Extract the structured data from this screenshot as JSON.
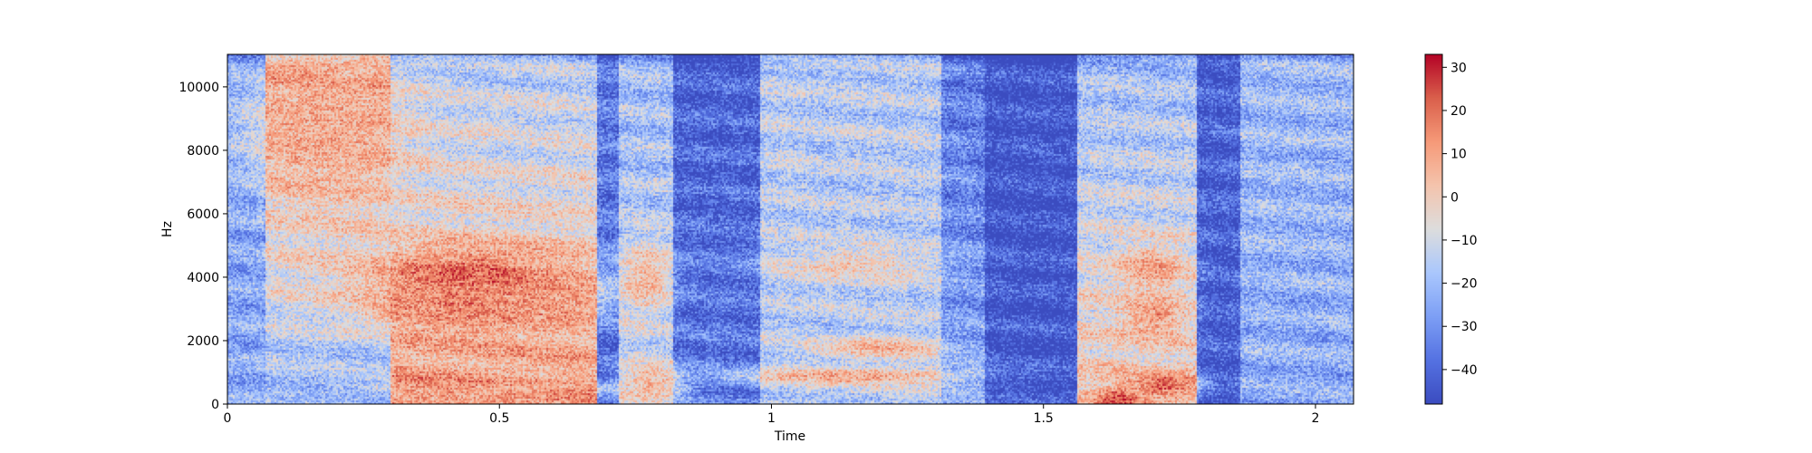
{
  "chart_data": {
    "type": "heatmap",
    "kind": "spectrogram",
    "xlabel": "Time",
    "ylabel": "Hz",
    "xlim": [
      0,
      2.07
    ],
    "ylim": [
      0,
      11025
    ],
    "x_ticks": [
      0,
      0.5,
      1,
      1.5,
      2
    ],
    "x_tick_labels": [
      "0",
      "0.5",
      "1",
      "1.5",
      "2"
    ],
    "y_ticks": [
      0,
      2000,
      4000,
      6000,
      8000,
      10000
    ],
    "y_tick_labels": [
      "0",
      "2000",
      "4000",
      "6000",
      "8000",
      "10000"
    ],
    "colormap": "coolwarm",
    "colorbar": {
      "vmin": -48,
      "vmax": 33,
      "ticks": [
        -40,
        -30,
        -20,
        -10,
        0,
        10,
        20,
        30
      ],
      "tick_labels": [
        "−40",
        "−30",
        "−20",
        "−10",
        "0",
        "10",
        "20",
        "30"
      ]
    },
    "segments": [
      {
        "t_start": 0.0,
        "t_end": 0.07,
        "low_db": -25,
        "high_db": -25
      },
      {
        "t_start": 0.07,
        "t_end": 0.3,
        "low_db": -25,
        "high_db": 10
      },
      {
        "t_start": 0.3,
        "t_end": 0.68,
        "low_db": 15,
        "high_db": -15
      },
      {
        "t_start": 0.68,
        "t_end": 0.72,
        "low_db": -40,
        "high_db": -35
      },
      {
        "t_start": 0.72,
        "t_end": 0.82,
        "low_db": -10,
        "high_db": -20
      },
      {
        "t_start": 0.82,
        "t_end": 0.98,
        "low_db": -35,
        "high_db": -42
      },
      {
        "t_start": 0.98,
        "t_end": 1.31,
        "low_db": -15,
        "high_db": -15
      },
      {
        "t_start": 1.31,
        "t_end": 1.39,
        "low_db": -25,
        "high_db": -35
      },
      {
        "t_start": 1.39,
        "t_end": 1.56,
        "low_db": -45,
        "high_db": -45
      },
      {
        "t_start": 1.56,
        "t_end": 1.78,
        "low_db": 5,
        "high_db": -20
      },
      {
        "t_start": 1.78,
        "t_end": 1.86,
        "low_db": -42,
        "high_db": -42
      },
      {
        "t_start": 1.86,
        "t_end": 2.07,
        "low_db": -25,
        "high_db": -20
      }
    ],
    "hotspots": [
      {
        "t": 0.45,
        "f": 4000,
        "db": 22,
        "t_spread": 0.14,
        "f_spread": 700
      },
      {
        "t": 0.42,
        "f": 3000,
        "db": 15,
        "t_spread": 0.12,
        "f_spread": 500
      },
      {
        "t": 0.58,
        "f": 3200,
        "db": 12,
        "t_spread": 0.06,
        "f_spread": 500
      },
      {
        "t": 0.18,
        "f": 8600,
        "db": 8,
        "t_spread": 0.1,
        "f_spread": 1300
      },
      {
        "t": 1.7,
        "f": 4300,
        "db": 12,
        "t_spread": 0.04,
        "f_spread": 500
      },
      {
        "t": 1.7,
        "f": 2800,
        "db": 12,
        "t_spread": 0.04,
        "f_spread": 500
      },
      {
        "t": 1.64,
        "f": 100,
        "db": 30,
        "t_spread": 0.03,
        "f_spread": 300
      },
      {
        "t": 1.72,
        "f": 600,
        "db": 20,
        "t_spread": 0.04,
        "f_spread": 300
      },
      {
        "t": 1.2,
        "f": 1800,
        "db": 8,
        "t_spread": 0.08,
        "f_spread": 250
      },
      {
        "t": 1.15,
        "f": 4400,
        "db": 0,
        "t_spread": 0.1,
        "f_spread": 400
      },
      {
        "t": 1.15,
        "f": 900,
        "db": 10,
        "t_spread": 0.15,
        "f_spread": 200
      },
      {
        "t": 0.5,
        "f": 500,
        "db": 10,
        "t_spread": 0.15,
        "f_spread": 150
      },
      {
        "t": 0.77,
        "f": 4000,
        "db": 5,
        "t_spread": 0.03,
        "f_spread": 800
      },
      {
        "t": 0.78,
        "f": 700,
        "db": 5,
        "t_spread": 0.04,
        "f_spread": 400
      }
    ],
    "grid": false,
    "legend": "none"
  }
}
